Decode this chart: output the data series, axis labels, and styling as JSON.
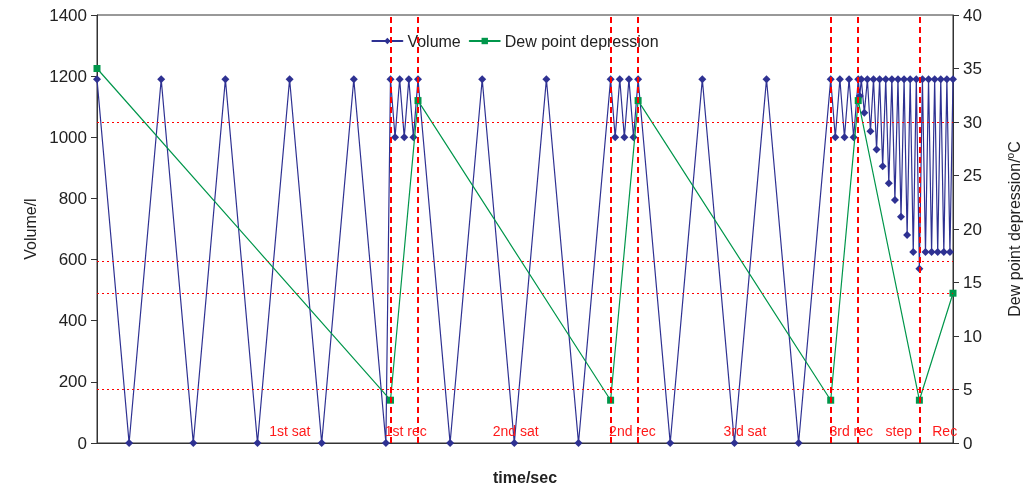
{
  "chart_data": {
    "type": "line",
    "xlabel": "time/sec",
    "ylabel": "Volume/l",
    "y2label": "Dew point depression/$^{o}$C",
    "ylim": [
      0,
      1400
    ],
    "yticks": [
      0,
      200,
      400,
      600,
      800,
      1000,
      1200,
      1400
    ],
    "y2lim": [
      0,
      40
    ],
    "y2ticks": [
      0,
      5,
      10,
      15,
      20,
      25,
      30,
      35,
      40
    ],
    "tick_labels": "y",
    "grid": false,
    "legend": "top",
    "categories": [
      null,
      null,
      null,
      null,
      null,
      null,
      null,
      null,
      null,
      null,
      null,
      null,
      null,
      null,
      null,
      null,
      null,
      null,
      null,
      null,
      null,
      null,
      null,
      null,
      null,
      null,
      null,
      null,
      null,
      null,
      null,
      null,
      null,
      null,
      null,
      null,
      null,
      null,
      null,
      null,
      null,
      null,
      null,
      null,
      null,
      null,
      null,
      null,
      null,
      null,
      null,
      null,
      null,
      null,
      null,
      null,
      null,
      null,
      null,
      null,
      null,
      null,
      null,
      null,
      null,
      null,
      null,
      null,
      null,
      null,
      null,
      null,
      null,
      null,
      null,
      null,
      null,
      null,
      null,
      null,
      null,
      null,
      null,
      null,
      null,
      null,
      null,
      null,
      null,
      null,
      null,
      null,
      null,
      null,
      null,
      null,
      null,
      null,
      null,
      null,
      null,
      null,
      null,
      null,
      null,
      null,
      null,
      null,
      null,
      null,
      null,
      null,
      null,
      null,
      null,
      null,
      null,
      null,
      null,
      null,
      null,
      null,
      null,
      null,
      null,
      null,
      null,
      null,
      null,
      null,
      null,
      null,
      null,
      null,
      null,
      null,
      null,
      null,
      null,
      null,
      null,
      null,
      null,
      null,
      null,
      null,
      null,
      null,
      null,
      null,
      null,
      null,
      null,
      null,
      null,
      null,
      null,
      null,
      null,
      null,
      null,
      null,
      null,
      null,
      null,
      null,
      null,
      null,
      null,
      null,
      null,
      null,
      null,
      null,
      null,
      null,
      null,
      null,
      null,
      null,
      null,
      null,
      null,
      null,
      null,
      null,
      null,
      null,
      null,
      null,
      null,
      null,
      null,
      null,
      null,
      null,
      null,
      null,
      null,
      null,
      null,
      null,
      null,
      null,
      null,
      null,
      null,
      null,
      null,
      null,
      null,
      null,
      null,
      null,
      null,
      null,
      null,
      null,
      null,
      null,
      null,
      null,
      null,
      null,
      null,
      null,
      null,
      null,
      null,
      null,
      null,
      null,
      null,
      null,
      null,
      null,
      null,
      null,
      null,
      null,
      null,
      null,
      null,
      null,
      null,
      null,
      null,
      null,
      null,
      null,
      null,
      null,
      null,
      null,
      null,
      null,
      null,
      null,
      null,
      null,
      null,
      null,
      null,
      null,
      null,
      null,
      null,
      null,
      null,
      null,
      null,
      null,
      null,
      null,
      null,
      null,
      null,
      null,
      null,
      null,
      null,
      null,
      null,
      null,
      null,
      null,
      null,
      null,
      null,
      null,
      null,
      null,
      null,
      null,
      null,
      null,
      null,
      null,
      null,
      null,
      null,
      null,
      null,
      null,
      null,
      null,
      null,
      null,
      null,
      null,
      null,
      null,
      null,
      null,
      null,
      null,
      null,
      null,
      null,
      null,
      null,
      null,
      null,
      null,
      null,
      null,
      null,
      null,
      null,
      null,
      null,
      null,
      null,
      null,
      null,
      null,
      null,
      null,
      null,
      null,
      null,
      null,
      null,
      null,
      null,
      null,
      null,
      null,
      null,
      null,
      null,
      null,
      null,
      null,
      null,
      null,
      null,
      null,
      null,
      null,
      null,
      null,
      null,
      null,
      null,
      null,
      null,
      null,
      null,
      null,
      null,
      null,
      null,
      null,
      null,
      null,
      null,
      null,
      null,
      null,
      null,
      null,
      null,
      null,
      null,
      null,
      null,
      null,
      null,
      null,
      null,
      null,
      null,
      null,
      null,
      null,
      null,
      null,
      null,
      null,
      null,
      null,
      null,
      null,
      null,
      null,
      null,
      null,
      null,
      null,
      null,
      null,
      null,
      null,
      null,
      null,
      null,
      null,
      null,
      null,
      null,
      null,
      null,
      null,
      null,
      null,
      null,
      null,
      null,
      null,
      null,
      null,
      null,
      null,
      null,
      null,
      null,
      null,
      null,
      null,
      null,
      null,
      null,
      null,
      null,
      null,
      null,
      null,
      null,
      null,
      null,
      null,
      null,
      null,
      null,
      null,
      null,
      null,
      null,
      null,
      null,
      null,
      null,
      null,
      null,
      null,
      null,
      null,
      null,
      null,
      null,
      null,
      null,
      null,
      null,
      null,
      null,
      null,
      null,
      null,
      null,
      null,
      null,
      null,
      null,
      null,
      null,
      null,
      null,
      null,
      null,
      null,
      null,
      null,
      null,
      null,
      null,
      null,
      null,
      null,
      null,
      null,
      null,
      null,
      null,
      null,
      null,
      null,
      null,
      null,
      null,
      null,
      null,
      null,
      null,
      null,
      null,
      null,
      null,
      null,
      null,
      null,
      null,
      null,
      null,
      null,
      null,
      null,
      null,
      null,
      null,
      null,
      null,
      null,
      null,
      null,
      null,
      null,
      null,
      null,
      null,
      null,
      null,
      null,
      null,
      null,
      null,
      null,
      null,
      null,
      null,
      null,
      null,
      null,
      null,
      null,
      null,
      null,
      null,
      null,
      null
    ],
    "series": [
      {
        "name": "Volume",
        "color": "#2e3192",
        "marker": "diamond",
        "values": [
          1190,
          null,
          null,
          null,
          null,
          null,
          null,
          null,
          null,
          null,
          null,
          null,
          null,
          null,
          null,
          null,
          null,
          null,
          null,
          null,
          null,
          0,
          null,
          null,
          null,
          null,
          null,
          null,
          null,
          null,
          null,
          null,
          null,
          null,
          null,
          null,
          null,
          null,
          null,
          null,
          null,
          null,
          1190,
          null,
          null,
          null,
          null,
          null,
          null,
          null,
          null,
          null,
          null,
          null,
          null,
          null,
          null,
          null,
          null,
          null,
          null,
          null,
          null,
          0,
          null,
          null,
          null,
          null,
          null,
          null,
          null,
          null,
          null,
          null,
          null,
          null,
          null,
          null,
          null,
          null,
          null,
          null,
          null,
          null,
          1190,
          null,
          null,
          null,
          null,
          null,
          null,
          null,
          null,
          null,
          null,
          null,
          null,
          null,
          null,
          null,
          null,
          null,
          null,
          null,
          null,
          0,
          null,
          null,
          null,
          null,
          null,
          null,
          null,
          null,
          null,
          null,
          null,
          null,
          null,
          null,
          null,
          null,
          null,
          null,
          null,
          null,
          1190,
          null,
          null,
          null,
          null,
          null,
          null,
          null,
          null,
          null,
          null,
          null,
          null,
          null,
          null,
          null,
          null,
          null,
          null,
          null,
          null,
          0,
          null,
          null,
          null,
          null,
          null,
          null,
          null,
          null,
          null,
          null,
          null,
          null,
          null,
          null,
          null,
          null,
          null,
          null,
          null,
          null,
          1190,
          null,
          null,
          null,
          null,
          null,
          null,
          null,
          null,
          null,
          null,
          null,
          null,
          null,
          null,
          null,
          null,
          null,
          null,
          null,
          null,
          0,
          null,
          null,
          1190,
          null,
          null,
          1000,
          null,
          null,
          1190,
          null,
          null,
          1000,
          null,
          null,
          1190,
          null,
          null,
          1000,
          null,
          null,
          1190,
          null,
          null,
          null,
          null,
          null,
          null,
          null,
          null,
          null,
          null,
          null,
          null,
          null,
          null,
          null,
          null,
          null,
          null,
          null,
          null,
          0,
          null,
          null,
          null,
          null,
          null,
          null,
          null,
          null,
          null,
          null,
          null,
          null,
          null,
          null,
          null,
          null,
          null,
          null,
          null,
          null,
          1190,
          null,
          null,
          null,
          null,
          null,
          null,
          null,
          null,
          null,
          null,
          null,
          null,
          null,
          null,
          null,
          null,
          null,
          null,
          null,
          null,
          0,
          null,
          null,
          null,
          null,
          null,
          null,
          null,
          null,
          null,
          null,
          null,
          null,
          null,
          null,
          null,
          null,
          null,
          null,
          null,
          null,
          1190,
          null,
          null,
          null,
          null,
          null,
          null,
          null,
          null,
          null,
          null,
          null,
          null,
          null,
          null,
          null,
          null,
          null,
          null,
          null,
          null,
          0,
          null,
          null,
          null,
          null,
          null,
          null,
          null,
          null,
          null,
          null,
          null,
          null,
          null,
          null,
          null,
          null,
          null,
          null,
          null,
          null,
          1190,
          null,
          null,
          1000,
          null,
          null,
          1190,
          null,
          null,
          1000,
          null,
          null,
          1190,
          null,
          null,
          1000,
          null,
          null,
          1190,
          null,
          null,
          null,
          null,
          null,
          null,
          null,
          null,
          null,
          null,
          null,
          null,
          null,
          null,
          null,
          null,
          null,
          null,
          null,
          null,
          0,
          null,
          null,
          null,
          null,
          null,
          null,
          null,
          null,
          null,
          null,
          null,
          null,
          null,
          null,
          null,
          null,
          null,
          null,
          null,
          null,
          1190,
          null,
          null,
          null,
          null,
          null,
          null,
          null,
          null,
          null,
          null,
          null,
          null,
          null,
          null,
          null,
          null,
          null,
          null,
          null,
          null,
          0,
          null,
          null,
          null,
          null,
          null,
          null,
          null,
          null,
          null,
          null,
          null,
          null,
          null,
          null,
          null,
          null,
          null,
          null,
          null,
          null,
          1190,
          null,
          null,
          null,
          null,
          null,
          null,
          null,
          null,
          null,
          null,
          null,
          null,
          null,
          null,
          null,
          null,
          null,
          null,
          null,
          null,
          0,
          null,
          null,
          null,
          null,
          null,
          null,
          null,
          null,
          null,
          null,
          null,
          null,
          null,
          null,
          null,
          null,
          null,
          null,
          null,
          null,
          1190,
          null,
          null,
          1000,
          null,
          null,
          1190,
          null,
          null,
          1000,
          null,
          null,
          1190,
          null,
          null,
          1000,
          null,
          null,
          1190,
          1135,
          1190,
          null,
          1080,
          null,
          1190,
          null,
          1020,
          null,
          1190,
          null,
          960,
          null,
          1190,
          null,
          905,
          null,
          1190,
          null,
          850,
          null,
          1190,
          null,
          795,
          null,
          1190,
          null,
          740,
          null,
          1190,
          null,
          680,
          null,
          1190,
          null,
          625,
          null,
          1190,
          null,
          570,
          null,
          1190,
          null,
          625,
          null,
          1190,
          null,
          625,
          null,
          1190,
          null,
          625,
          null,
          1190,
          null,
          625,
          null,
          1190,
          null,
          625,
          null,
          1190
        ]
      },
      {
        "name": "Dew point depression",
        "color": "#00964b",
        "marker": "square",
        "axis": "y2",
        "values": [
          35,
          null,
          null,
          null,
          null,
          null,
          null,
          null,
          null,
          null,
          null,
          null,
          null,
          null,
          null,
          null,
          null,
          null,
          null,
          null,
          null,
          null,
          null,
          null,
          null,
          null,
          null,
          null,
          null,
          null,
          null,
          null,
          null,
          null,
          null,
          null,
          null,
          null,
          null,
          null,
          null,
          null,
          null,
          null,
          null,
          null,
          null,
          null,
          null,
          null,
          null,
          null,
          null,
          null,
          null,
          null,
          null,
          null,
          null,
          null,
          null,
          null,
          null,
          null,
          null,
          null,
          null,
          null,
          null,
          null,
          null,
          null,
          null,
          null,
          null,
          null,
          null,
          null,
          null,
          null,
          null,
          null,
          null,
          null,
          null,
          null,
          null,
          null,
          null,
          null,
          null,
          null,
          null,
          null,
          null,
          null,
          null,
          null,
          null,
          null,
          null,
          null,
          null,
          null,
          null,
          null,
          null,
          null,
          null,
          null,
          null,
          null,
          null,
          null,
          null,
          null,
          null,
          null,
          null,
          null,
          null,
          null,
          null,
          null,
          null,
          null,
          null,
          null,
          null,
          null,
          null,
          null,
          null,
          null,
          null,
          null,
          null,
          null,
          null,
          null,
          null,
          null,
          null,
          null,
          null,
          null,
          null,
          null,
          null,
          null,
          null,
          null,
          null,
          null,
          null,
          null,
          null,
          null,
          null,
          null,
          null,
          null,
          null,
          null,
          null,
          null,
          null,
          null,
          null,
          null,
          null,
          null,
          null,
          null,
          null,
          null,
          null,
          null,
          null,
          null,
          null,
          null,
          null,
          null,
          null,
          null,
          null,
          null,
          null,
          null,
          null,
          null,
          4,
          null,
          null,
          null,
          null,
          null,
          null,
          null,
          null,
          null,
          null,
          null,
          null,
          null,
          null,
          null,
          null,
          null,
          32,
          null,
          null,
          null,
          null,
          null,
          null,
          null,
          null,
          null,
          null,
          null,
          null,
          null,
          null,
          null,
          null,
          null,
          null,
          null,
          null,
          null,
          null,
          null,
          null,
          null,
          null,
          null,
          null,
          null,
          null,
          null,
          null,
          null,
          null,
          null,
          null,
          null,
          null,
          null,
          null,
          null,
          null,
          null,
          null,
          null,
          null,
          null,
          null,
          null,
          null,
          null,
          null,
          null,
          null,
          null,
          null,
          null,
          null,
          null,
          null,
          null,
          null,
          null,
          null,
          null,
          null,
          null,
          null,
          null,
          null,
          null,
          null,
          null,
          null,
          null,
          null,
          null,
          null,
          null,
          null,
          null,
          null,
          null,
          null,
          null,
          null,
          null,
          null,
          null,
          null,
          null,
          null,
          null,
          null,
          null,
          null,
          null,
          null,
          null,
          null,
          null,
          null,
          null,
          null,
          null,
          null,
          null,
          null,
          null,
          null,
          null,
          null,
          null,
          null,
          null,
          null,
          null,
          null,
          null,
          null,
          null,
          null,
          null,
          null,
          null,
          4,
          null,
          null,
          null,
          null,
          null,
          null,
          null,
          null,
          null,
          null,
          null,
          null,
          null,
          null,
          null,
          null,
          null,
          32,
          null,
          null,
          null,
          null,
          null,
          null,
          null,
          null,
          null,
          null,
          null,
          null,
          null,
          null,
          null,
          null,
          null,
          null,
          null,
          null,
          null,
          null,
          null,
          null,
          null,
          null,
          null,
          null,
          null,
          null,
          null,
          null,
          null,
          null,
          null,
          null,
          null,
          null,
          null,
          null,
          null,
          null,
          null,
          null,
          null,
          null,
          null,
          null,
          null,
          null,
          null,
          null,
          null,
          null,
          null,
          null,
          null,
          null,
          null,
          null,
          null,
          null,
          null,
          null,
          null,
          null,
          null,
          null,
          null,
          null,
          null,
          null,
          null,
          null,
          null,
          null,
          null,
          null,
          null,
          null,
          null,
          null,
          null,
          null,
          null,
          null,
          null,
          null,
          null,
          null,
          null,
          null,
          null,
          null,
          null,
          null,
          null,
          null,
          null,
          null,
          null,
          null,
          null,
          null,
          null,
          null,
          null,
          null,
          null,
          null,
          null,
          null,
          null,
          null,
          null,
          null,
          null,
          null,
          null,
          null,
          null,
          null,
          null,
          null,
          null,
          4,
          null,
          null,
          null,
          null,
          null,
          null,
          null,
          null,
          null,
          null,
          null,
          null,
          null,
          null,
          null,
          null,
          null,
          32,
          null,
          null,
          null,
          null,
          null,
          null,
          null,
          null,
          null,
          null,
          null,
          null,
          null,
          null,
          null,
          null,
          null,
          null,
          null,
          null,
          null,
          null,
          null,
          null,
          null,
          null,
          null,
          null,
          null,
          null,
          null,
          null,
          null,
          null,
          null,
          null,
          null,
          null,
          null,
          4,
          null,
          null,
          null,
          null,
          null,
          null,
          null,
          null,
          null,
          null,
          null,
          null,
          null,
          null,
          null,
          null,
          null,
          null,
          null,
          null,
          null,
          14
        ]
      }
    ],
    "ref_lines": [
      {
        "axis": "y2",
        "value": 30,
        "color": "#ff0000",
        "line_style": "dotted"
      },
      {
        "axis": "y2",
        "value": 17,
        "color": "#ff0000",
        "line_style": "dotted"
      },
      {
        "axis": "y2",
        "value": 14,
        "color": "#ff0000",
        "line_style": "dotted"
      },
      {
        "axis": "y2",
        "value": 5,
        "color": "#ff0000",
        "line_style": "dotted"
      }
    ],
    "annotations": [
      "1st sat",
      "1st rec",
      "2nd sat",
      "2nd rec",
      "3rd sat",
      "3rd rec",
      "step",
      "Rec"
    ]
  }
}
